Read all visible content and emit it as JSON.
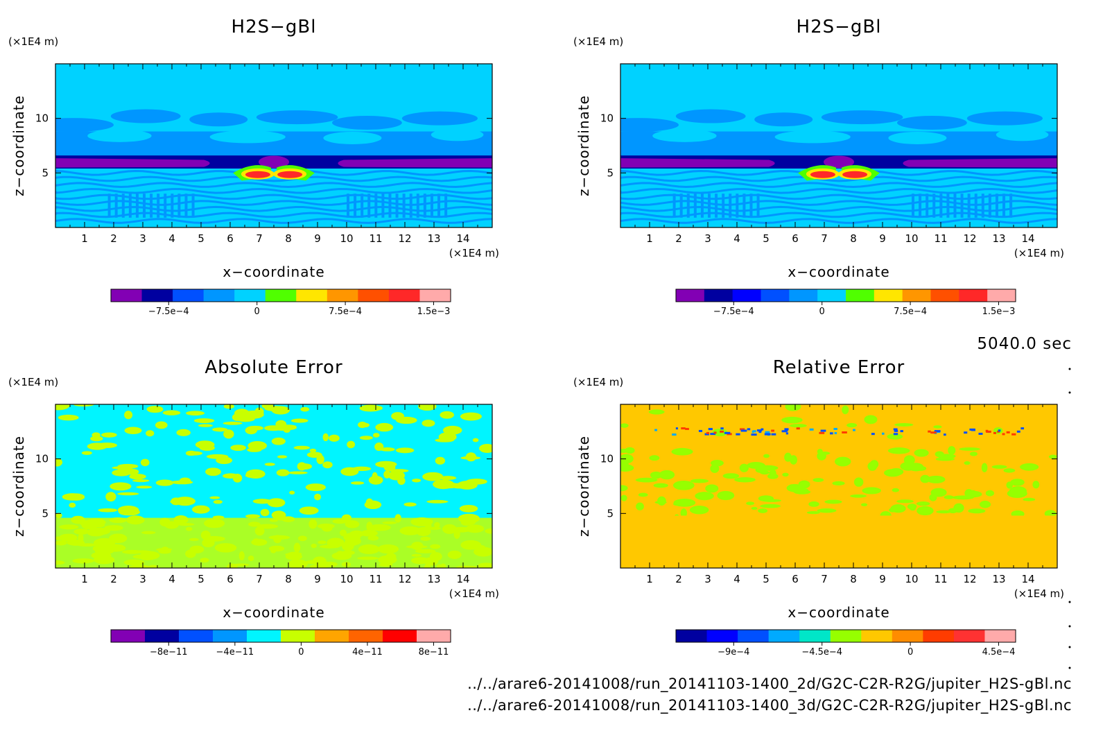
{
  "time_label": "5040.0 sec",
  "files": [
    "../../arare6-20141008/run_20141103-1400_2d/G2C-C2R-R2G/jupiter_H2S-gBl.nc",
    "../../arare6-20141008/run_20141103-1400_3d/G2C-C2R-R2G/jupiter_H2S-gBl.nc"
  ],
  "chart_data": [
    {
      "type": "heatmap",
      "title": "H2S−gBl",
      "xlabel": "x−coordinate",
      "ylabel": "z−coordinate",
      "x_unit": "(×1E4 m)",
      "y_unit": "(×1E4 m)",
      "xlim": [
        0,
        15
      ],
      "ylim": [
        0,
        15
      ],
      "xticks": [
        "1",
        "2",
        "3",
        "4",
        "5",
        "6",
        "7",
        "8",
        "9",
        "10",
        "11",
        "12",
        "13",
        "14"
      ],
      "yticks": [
        "5",
        "10"
      ],
      "colorbar": {
        "colors": [
          "#8200b4",
          "#0000a0",
          "#0050ff",
          "#0096ff",
          "#00d2ff",
          "#50ff00",
          "#ffe600",
          "#ff9600",
          "#ff5000",
          "#ff2828",
          "#ffaaaa"
        ],
        "tick_labels": [
          "−7.5e−4",
          "0",
          "7.5e−4",
          "1.5e−3"
        ]
      },
      "field": "h2s"
    },
    {
      "type": "heatmap",
      "title": "H2S−gBl",
      "xlabel": "x−coordinate",
      "ylabel": "z−coordinate",
      "x_unit": "(×1E4 m)",
      "y_unit": "(×1E4 m)",
      "xlim": [
        0,
        15
      ],
      "ylim": [
        0,
        15
      ],
      "xticks": [
        "1",
        "2",
        "3",
        "4",
        "5",
        "6",
        "7",
        "8",
        "9",
        "10",
        "11",
        "12",
        "13",
        "14"
      ],
      "yticks": [
        "5",
        "10"
      ],
      "colorbar": {
        "colors": [
          "#8200b4",
          "#0000a0",
          "#0000ff",
          "#0050ff",
          "#0096ff",
          "#00d2ff",
          "#50ff00",
          "#ffe600",
          "#ff9600",
          "#ff5000",
          "#ff2828",
          "#ffaaaa"
        ],
        "tick_labels": [
          "−7.5e−4",
          "0",
          "7.5e−4",
          "1.5e−3"
        ]
      },
      "field": "h2s"
    },
    {
      "type": "heatmap",
      "title": "Absolute Error",
      "xlabel": "x−coordinate",
      "ylabel": "z−coordinate",
      "x_unit": "(×1E4 m)",
      "y_unit": "(×1E4 m)",
      "xlim": [
        0,
        15
      ],
      "ylim": [
        0,
        15
      ],
      "xticks": [
        "1",
        "2",
        "3",
        "4",
        "5",
        "6",
        "7",
        "8",
        "9",
        "10",
        "11",
        "12",
        "13",
        "14"
      ],
      "yticks": [
        "5",
        "10"
      ],
      "colorbar": {
        "colors": [
          "#8200b4",
          "#0000a0",
          "#0050ff",
          "#0096ff",
          "#00f5ff",
          "#c8ff00",
          "#ffa500",
          "#ff6400",
          "#ff0000",
          "#ffaaaa"
        ],
        "tick_labels": [
          "−8e−11",
          "−4e−11",
          "0",
          "4e−11",
          "8e−11"
        ]
      },
      "field": "abs",
      "field_colors": [
        "#00f5ff",
        "#c8ff00"
      ]
    },
    {
      "type": "heatmap",
      "title": "Relative Error",
      "xlabel": "x−coordinate",
      "ylabel": "z−coordinate",
      "x_unit": "(×1E4 m)",
      "y_unit": "(×1E4 m)",
      "xlim": [
        0,
        15
      ],
      "ylim": [
        0,
        15
      ],
      "xticks": [
        "1",
        "2",
        "3",
        "4",
        "5",
        "6",
        "7",
        "8",
        "9",
        "10",
        "11",
        "12",
        "13",
        "14"
      ],
      "yticks": [
        "5",
        "10"
      ],
      "colorbar": {
        "colors": [
          "#0000a0",
          "#0000ff",
          "#0050ff",
          "#00aaff",
          "#00e6c8",
          "#96ff00",
          "#ffc800",
          "#ff8c00",
          "#ff3c00",
          "#ff3232",
          "#ffaaaa"
        ],
        "tick_labels": [
          "−9e−4",
          "−4.5e−4",
          "0",
          "4.5e−4"
        ]
      },
      "field": "rel",
      "field_colors": [
        "#ffc800",
        "#96ff00"
      ]
    }
  ]
}
